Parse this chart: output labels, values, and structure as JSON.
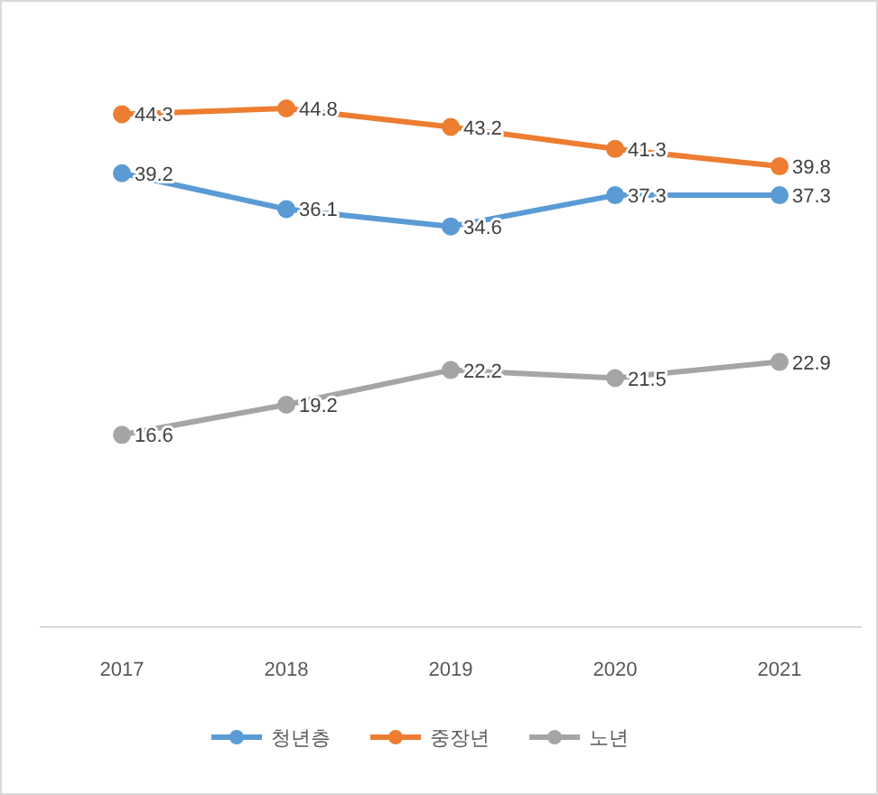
{
  "chart_data": {
    "type": "line",
    "categories": [
      "2017",
      "2018",
      "2019",
      "2020",
      "2021"
    ],
    "series": [
      {
        "name": "청년층",
        "color": "#5b9bd5",
        "values": [
          39.2,
          36.1,
          34.6,
          37.3,
          37.3
        ]
      },
      {
        "name": "중장년",
        "color": "#ed7d31",
        "values": [
          44.3,
          44.8,
          43.2,
          41.3,
          39.8
        ]
      },
      {
        "name": "노년",
        "color": "#a5a5a5",
        "values": [
          16.6,
          19.2,
          22.2,
          21.5,
          22.9
        ]
      }
    ],
    "tick_labels": "x",
    "data_labels": true,
    "marker": "circle",
    "legend": "bottom"
  }
}
